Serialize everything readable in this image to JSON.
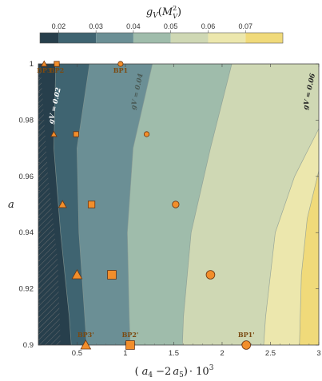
{
  "chart_data": {
    "type": "heatmap",
    "colorbar": {
      "title": "g_V(M_V^2)",
      "ticks": [
        0.02,
        0.03,
        0.04,
        0.05,
        0.06,
        0.07
      ],
      "range": [
        0.015,
        0.08
      ],
      "colors": [
        "#273f4c",
        "#3f6471",
        "#6b8f95",
        "#9fbcab",
        "#cfd8b4",
        "#ece7ad",
        "#f0da7a"
      ]
    },
    "xlabel": "( a4 − 2 a5 ) · 10^3",
    "ylabel": "a",
    "xlim": [
      0.1,
      3.0
    ],
    "ylim": [
      0.9,
      1.0
    ],
    "xticks": [
      "0.5",
      "1",
      "1.5",
      "2",
      "2.5",
      "3"
    ],
    "yticks": [
      "0.9",
      "0.92",
      "0.94",
      "0.96",
      "0.98",
      "1"
    ],
    "contours": [
      {
        "level": 0.02,
        "label": "gV = 0.02",
        "points": [
          [
            0.28,
            1.0
          ],
          [
            0.26,
            0.97
          ],
          [
            0.33,
            0.94
          ],
          [
            0.42,
            0.91
          ],
          [
            0.44,
            0.9
          ]
        ]
      },
      {
        "level": 0.03,
        "label": "",
        "points": [
          [
            0.63,
            1.0
          ],
          [
            0.5,
            0.97
          ],
          [
            0.52,
            0.94
          ],
          [
            0.58,
            0.91
          ],
          [
            0.6,
            0.9
          ]
        ]
      },
      {
        "level": 0.04,
        "label": "gV = 0.04",
        "points": [
          [
            1.28,
            1.0
          ],
          [
            1.08,
            0.97
          ],
          [
            1.02,
            0.94
          ],
          [
            1.04,
            0.91
          ],
          [
            1.05,
            0.9
          ]
        ]
      },
      {
        "level": 0.05,
        "label": "",
        "points": [
          [
            2.1,
            1.0
          ],
          [
            1.88,
            0.97
          ],
          [
            1.68,
            0.94
          ],
          [
            1.6,
            0.91
          ],
          [
            1.59,
            0.9
          ]
        ]
      },
      {
        "level": 0.06,
        "label": "gV = 0.06",
        "points": [
          [
            3.0,
            0.977
          ],
          [
            2.75,
            0.96
          ],
          [
            2.55,
            0.94
          ],
          [
            2.45,
            0.91
          ],
          [
            2.43,
            0.9
          ]
        ]
      },
      {
        "level": 0.07,
        "label": "",
        "points": [
          [
            3.0,
            0.962
          ],
          [
            2.88,
            0.945
          ],
          [
            2.82,
            0.925
          ],
          [
            2.8,
            0.9
          ]
        ]
      }
    ],
    "excluded_region": {
      "boundary": [
        [
          0.12,
          1.0
        ],
        [
          0.2,
          0.96
        ],
        [
          0.3,
          0.93
        ],
        [
          0.33,
          0.9
        ]
      ]
    },
    "benchmark_points": [
      {
        "label": "BP3'",
        "marker": "triangle",
        "size": "large",
        "x": 0.59,
        "y": 0.9
      },
      {
        "label": "BP2'",
        "marker": "square",
        "size": "large",
        "x": 1.05,
        "y": 0.9
      },
      {
        "label": "BP1'",
        "marker": "circle",
        "size": "large",
        "x": 2.25,
        "y": 0.9
      },
      {
        "label": "",
        "marker": "triangle",
        "size": "large",
        "x": 0.5,
        "y": 0.925
      },
      {
        "label": "",
        "marker": "square",
        "size": "large",
        "x": 0.86,
        "y": 0.925
      },
      {
        "label": "",
        "marker": "circle",
        "size": "large",
        "x": 1.88,
        "y": 0.925
      },
      {
        "label": "",
        "marker": "triangle",
        "size": "medium",
        "x": 0.35,
        "y": 0.95
      },
      {
        "label": "",
        "marker": "square",
        "size": "medium",
        "x": 0.65,
        "y": 0.95
      },
      {
        "label": "",
        "marker": "circle",
        "size": "medium",
        "x": 1.52,
        "y": 0.95
      },
      {
        "label": "",
        "marker": "triangle",
        "size": "small",
        "x": 0.26,
        "y": 0.975
      },
      {
        "label": "",
        "marker": "square",
        "size": "small",
        "x": 0.49,
        "y": 0.975
      },
      {
        "label": "",
        "marker": "circle",
        "size": "small",
        "x": 1.22,
        "y": 0.975
      },
      {
        "label": "BP3",
        "marker": "triangle",
        "size": "small",
        "x": 0.16,
        "y": 1.0
      },
      {
        "label": "BP2",
        "marker": "square",
        "size": "small",
        "x": 0.29,
        "y": 1.0
      },
      {
        "label": "BP1",
        "marker": "circle",
        "size": "small",
        "x": 0.95,
        "y": 1.0
      }
    ],
    "marker_color": "#f28e2b",
    "marker_edge": "#6b3410"
  }
}
